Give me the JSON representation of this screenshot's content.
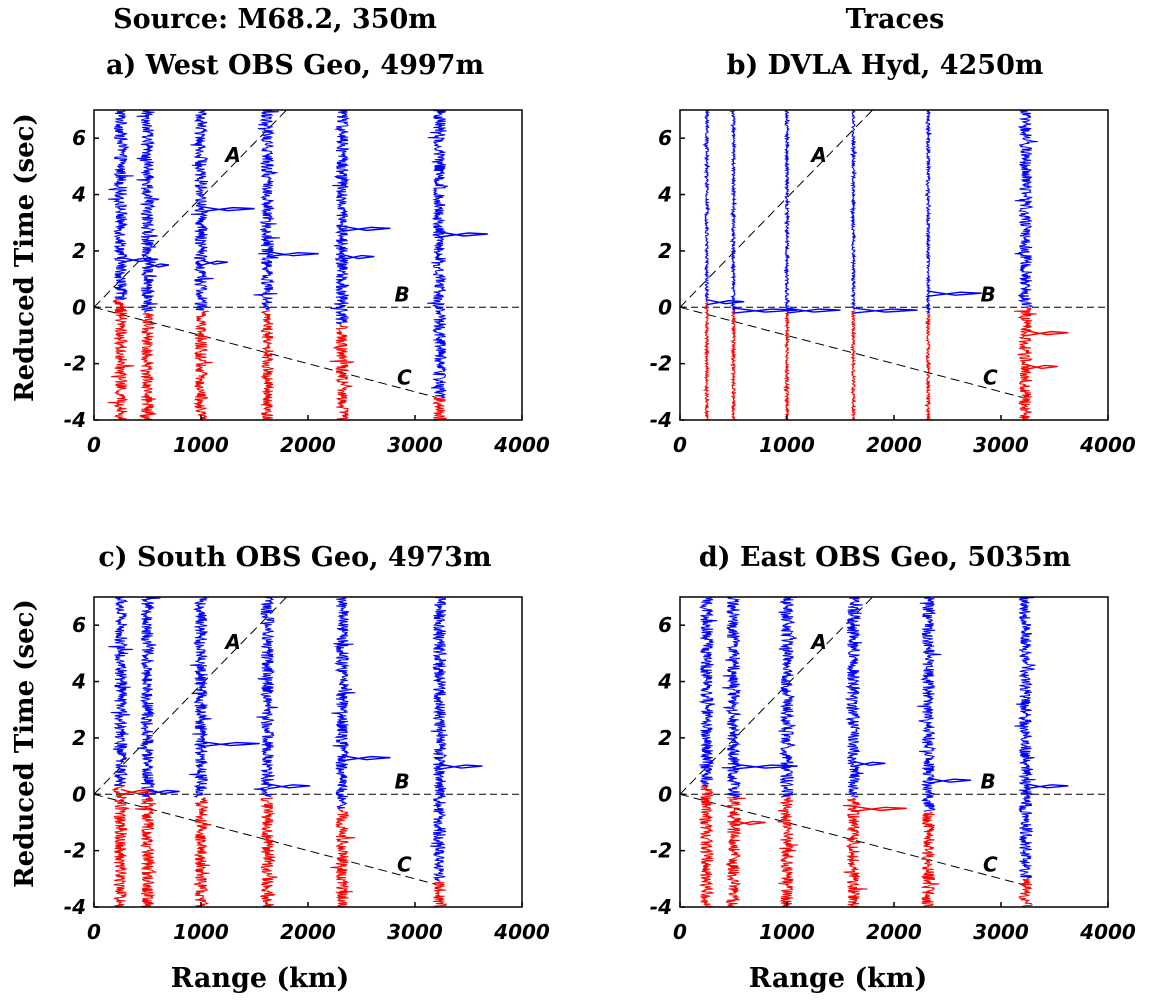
{
  "figure": {
    "top_left_title": "Source: M68.2, 350m",
    "top_right_title": "Traces",
    "xlabel": "Range (km)",
    "ylabel": "Reduced Time (sec)"
  },
  "colors": {
    "upper_segment": "#0000ff",
    "lower_segment": "#ff0000",
    "axes": "#000000"
  },
  "chart_data": [
    {
      "type": "line",
      "title": "a) West OBS Geo, 4997m",
      "xlim": [
        0,
        4000
      ],
      "ylim": [
        -4,
        7
      ],
      "xticks": [
        "0",
        "1000",
        "2000",
        "3000",
        "4000"
      ],
      "yticks": [
        "-4",
        "-2",
        "0",
        "2",
        "4",
        "6"
      ],
      "trace_ranges": [
        250,
        500,
        1000,
        1620,
        2320,
        3230
      ],
      "red_blue_split_time": [
        0.3,
        -0.2,
        -0.1,
        -0.1,
        -0.6,
        -3.2
      ],
      "strong_arrivals": [
        [
          250,
          1.7,
          350
        ],
        [
          500,
          1.5,
          200
        ],
        [
          1000,
          3.5,
          500
        ],
        [
          1000,
          1.6,
          250
        ],
        [
          1620,
          1.9,
          480
        ],
        [
          2320,
          2.8,
          450
        ],
        [
          2320,
          1.8,
          300
        ],
        [
          3230,
          2.6,
          450
        ]
      ],
      "reference_lines": [
        {
          "label": "A",
          "from": [
            0,
            0
          ],
          "to": [
            1800,
            7
          ]
        },
        {
          "label": "B",
          "from": [
            0,
            0
          ],
          "to": [
            4000,
            0
          ]
        },
        {
          "label": "C",
          "from": [
            0,
            0
          ],
          "to": [
            3200,
            -3.2
          ]
        }
      ]
    },
    {
      "type": "line",
      "title": "b) DVLA Hyd, 4250m",
      "xlim": [
        0,
        4000
      ],
      "ylim": [
        -4,
        7
      ],
      "xticks": [
        "0",
        "1000",
        "2000",
        "3000",
        "4000"
      ],
      "yticks": [
        "-4",
        "-2",
        "0",
        "2",
        "4",
        "6"
      ],
      "trace_ranges": [
        250,
        500,
        1000,
        1620,
        2320,
        3230
      ],
      "red_blue_split_time": [
        0.2,
        -0.1,
        -0.1,
        -0.1,
        -0.2,
        0.0
      ],
      "strong_arrivals": [
        [
          250,
          0.2,
          350
        ],
        [
          500,
          -0.1,
          600
        ],
        [
          1000,
          -0.1,
          500
        ],
        [
          1620,
          -0.1,
          600
        ],
        [
          2320,
          0.5,
          500
        ],
        [
          3230,
          -0.9,
          400
        ],
        [
          3230,
          -2.1,
          300
        ]
      ],
      "reference_lines": [
        {
          "label": "A",
          "from": [
            0,
            0
          ],
          "to": [
            1800,
            7
          ]
        },
        {
          "label": "B",
          "from": [
            0,
            0
          ],
          "to": [
            4000,
            0
          ]
        },
        {
          "label": "C",
          "from": [
            0,
            0
          ],
          "to": [
            3200,
            -3.2
          ]
        }
      ]
    },
    {
      "type": "line",
      "title": "c) South OBS Geo, 4973m",
      "xlim": [
        0,
        4000
      ],
      "ylim": [
        -4,
        7
      ],
      "xticks": [
        "0",
        "1000",
        "2000",
        "3000",
        "4000"
      ],
      "yticks": [
        "-4",
        "-2",
        "0",
        "2",
        "4",
        "6"
      ],
      "trace_ranges": [
        250,
        500,
        1000,
        1620,
        2320,
        3230
      ],
      "red_blue_split_time": [
        0.3,
        -0.1,
        -0.1,
        -0.1,
        -0.5,
        -3.1
      ],
      "strong_arrivals": [
        [
          250,
          0.1,
          300
        ],
        [
          500,
          0.1,
          300
        ],
        [
          1000,
          1.8,
          550
        ],
        [
          1620,
          0.3,
          400
        ],
        [
          2320,
          1.3,
          450
        ],
        [
          3230,
          1.0,
          400
        ]
      ],
      "reference_lines": [
        {
          "label": "A",
          "from": [
            0,
            0
          ],
          "to": [
            1800,
            7
          ]
        },
        {
          "label": "B",
          "from": [
            0,
            0
          ],
          "to": [
            4000,
            0
          ]
        },
        {
          "label": "C",
          "from": [
            0,
            0
          ],
          "to": [
            3200,
            -3.2
          ]
        }
      ]
    },
    {
      "type": "line",
      "title": "d) East OBS Geo, 5035m",
      "xlim": [
        0,
        4000
      ],
      "ylim": [
        -4,
        7
      ],
      "xticks": [
        "0",
        "1000",
        "2000",
        "3000",
        "4000"
      ],
      "yticks": [
        "-4",
        "-2",
        "0",
        "2",
        "4",
        "6"
      ],
      "trace_ranges": [
        250,
        500,
        1000,
        1620,
        2320,
        3230
      ],
      "red_blue_split_time": [
        0.3,
        -0.1,
        -0.1,
        -0.1,
        -0.6,
        -3.0
      ],
      "strong_arrivals": [
        [
          500,
          1.0,
          600
        ],
        [
          500,
          -1.0,
          300
        ],
        [
          1620,
          -0.5,
          500
        ],
        [
          1620,
          1.1,
          300
        ],
        [
          2320,
          0.5,
          400
        ],
        [
          3230,
          0.3,
          400
        ]
      ],
      "reference_lines": [
        {
          "label": "A",
          "from": [
            0,
            0
          ],
          "to": [
            1800,
            7
          ]
        },
        {
          "label": "B",
          "from": [
            0,
            0
          ],
          "to": [
            4000,
            0
          ]
        },
        {
          "label": "C",
          "from": [
            0,
            0
          ],
          "to": [
            3200,
            -3.2
          ]
        }
      ]
    }
  ]
}
